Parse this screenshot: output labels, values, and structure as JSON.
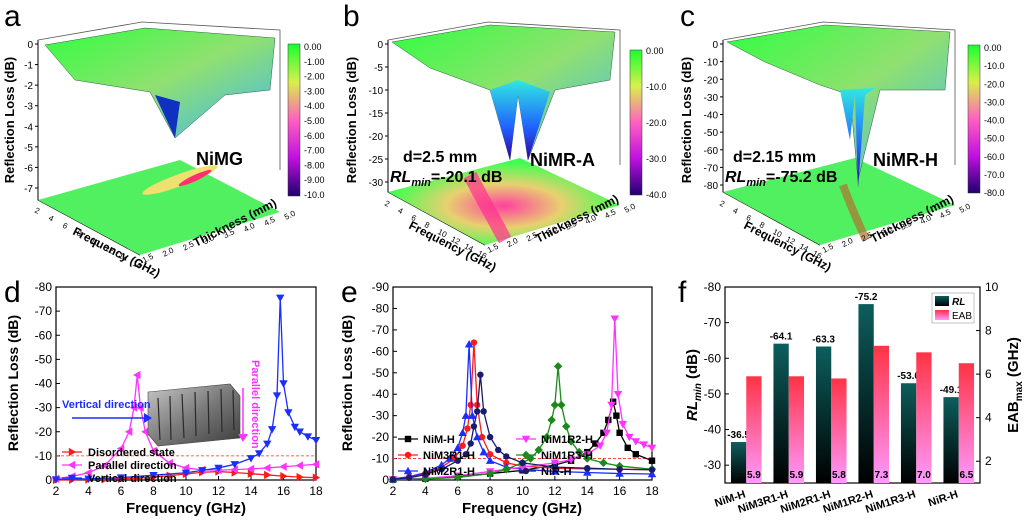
{
  "panels": {
    "a": {
      "letter": "a",
      "zlabel": "Reflection Loss (dB)",
      "xlabel": "Frequency (GHz)",
      "ylabel": "Thickness (mm)",
      "name": "NiMG",
      "zticks": [
        "0",
        "-1",
        "-2",
        "-3",
        "-4",
        "-5",
        "-6",
        "-7"
      ],
      "cbar": [
        "0.00",
        "-1.00",
        "-2.00",
        "-3.00",
        "-4.00",
        "-5.00",
        "-6.00",
        "-7.00",
        "-8.00",
        "-9.00",
        "-10.0"
      ],
      "fticks": [
        "2",
        "4",
        "6",
        "8",
        "10",
        "12",
        "14",
        "16"
      ],
      "tticks": [
        "1.5",
        "2.0",
        "2.5",
        "3.0",
        "3.5",
        "4.0",
        "4.5",
        "5.0"
      ]
    },
    "b": {
      "letter": "b",
      "zlabel": "Reflection Loss (dB)",
      "xlabel": "Frequency (GHz)",
      "ylabel": "Thickness (mm)",
      "name": "NiMR-A",
      "ann1": "d=2.5 mm",
      "ann2_rl": "RL",
      "ann2_sub": "min",
      "ann2_val": "=-20.1 dB",
      "zticks": [
        "0",
        "-5",
        "-10",
        "-15",
        "-20",
        "-25",
        "-30"
      ],
      "cbar": [
        "0.00",
        "-10.0",
        "-20.0",
        "-30.0",
        "-40.0"
      ],
      "fticks": [
        "2",
        "4",
        "6",
        "8",
        "10",
        "12",
        "14",
        "16"
      ],
      "tticks": [
        "1.5",
        "2.0",
        "2.5",
        "3.0",
        "3.5",
        "4.0",
        "4.5",
        "5.0"
      ]
    },
    "c": {
      "letter": "c",
      "zlabel": "Reflection Loss (dB)",
      "xlabel": "Frequency (GHz)",
      "ylabel": "Thickness (mm)",
      "name": "NiMR-H",
      "ann1": "d=2.15 mm",
      "ann2_rl": "RL",
      "ann2_sub": "min",
      "ann2_val": "=-75.2 dB",
      "zticks": [
        "0",
        "-10",
        "-20",
        "-30",
        "-40",
        "-50",
        "-60",
        "-70",
        "-80"
      ],
      "cbar": [
        "0.00",
        "-10.0",
        "-20.0",
        "-30.0",
        "-40.0",
        "-50.0",
        "-60.0",
        "-70.0",
        "-80.0"
      ],
      "fticks": [
        "2",
        "4",
        "6",
        "8",
        "10",
        "12",
        "14",
        "16"
      ],
      "tticks": [
        "1.5",
        "2.0",
        "2.5",
        "3.0",
        "3.5",
        "4.0",
        "4.5",
        "5.0"
      ]
    },
    "d": {
      "letter": "d",
      "ylabel": "Reflection Loss (dB)",
      "xlabel": "Frequency (GHz)",
      "inset_left": "Vertical direction",
      "inset_right": "Parallel direction"
    },
    "e": {
      "letter": "e",
      "ylabel": "Reflection Loss (dB)",
      "xlabel": "Frequency (GHz)"
    },
    "f": {
      "letter": "f",
      "ylabel_left": "RL",
      "ylabel_left_sub": "min",
      "ylabel_left_unit": " (dB)",
      "ylabel_right": "EAB",
      "ylabel_right_sub": "max",
      "ylabel_right_unit": " (GHz)",
      "legend": [
        "RL",
        "EAB"
      ]
    }
  },
  "colors": {
    "black": "#000000",
    "red": "#ff1a1a",
    "blue": "#1a2eff",
    "magenta": "#ff33ff",
    "green": "#1b8a1b",
    "navy": "#1a1a6e",
    "refline": "#ff2a2a"
  },
  "chart_data": [
    {
      "panel": "d",
      "type": "line",
      "xlabel": "Frequency (GHz)",
      "ylabel": "Reflection Loss (dB)",
      "xlim": [
        2,
        18
      ],
      "ylim": [
        -80,
        0
      ],
      "xticks": [
        2,
        4,
        6,
        8,
        10,
        12,
        14,
        16,
        18
      ],
      "yticks": [
        0,
        -10,
        -20,
        -30,
        -40,
        -50,
        -60,
        -70,
        -80
      ],
      "reference_line": -10,
      "legend_position": "bottom-left",
      "series": [
        {
          "name": "Disordered state",
          "color": "#ff1a1a",
          "marker": "triangle-right",
          "x": [
            2,
            3,
            4,
            5,
            6,
            7,
            8,
            9,
            10,
            11,
            12,
            13,
            14,
            15,
            16,
            17,
            18
          ],
          "y": [
            0,
            -0.1,
            -0.2,
            -0.3,
            -0.5,
            -0.8,
            -1.2,
            -1.8,
            -2.5,
            -3.2,
            -3.5,
            -3.1,
            -2.6,
            -2.1,
            -1.6,
            -1.2,
            -1
          ]
        },
        {
          "name": "Parallel direction",
          "color": "#ff33ff",
          "marker": "triangle-left",
          "x": [
            2,
            3,
            4,
            5,
            6,
            6.5,
            6.8,
            7,
            7.2,
            7.5,
            8,
            9,
            10,
            11,
            12,
            13,
            14,
            15,
            16,
            17,
            18
          ],
          "y": [
            -0.5,
            -1.5,
            -3,
            -6,
            -13,
            -20,
            -30,
            -43.5,
            -30,
            -20,
            -12,
            -7,
            -5,
            -4.2,
            -4.1,
            -4.3,
            -4.6,
            -5,
            -5.5,
            -6,
            -6.5
          ]
        },
        {
          "name": "Vertical direction",
          "color": "#1a2eff",
          "marker": "triangle-down",
          "x": [
            2,
            4,
            6,
            8,
            10,
            11,
            12,
            13,
            14,
            14.5,
            15,
            15.3,
            15.6,
            15.8,
            16,
            16.3,
            16.7,
            17,
            17.5,
            18
          ],
          "y": [
            -0.2,
            -0.5,
            -1,
            -2,
            -3,
            -4,
            -5,
            -6.5,
            -9,
            -11,
            -15,
            -21,
            -35,
            -75.5,
            -40,
            -28,
            -22,
            -20,
            -18,
            -16.5
          ]
        }
      ]
    },
    {
      "panel": "e",
      "type": "line",
      "xlabel": "Frequency (GHz)",
      "ylabel": "Reflection Loss (dB)",
      "xlim": [
        2,
        18
      ],
      "ylim": [
        -90,
        0
      ],
      "xticks": [
        2,
        4,
        6,
        8,
        10,
        12,
        14,
        16,
        18
      ],
      "yticks": [
        0,
        -10,
        -20,
        -30,
        -40,
        -50,
        -60,
        -70,
        -80,
        -90
      ],
      "reference_line": -10,
      "legend_position": "bottom-left",
      "series": [
        {
          "name": "NiM-H",
          "color": "#000000",
          "marker": "square",
          "x": [
            2,
            4,
            6,
            8,
            10,
            12,
            13,
            14,
            14.5,
            15,
            15.3,
            15.6,
            15.8,
            16,
            16.5,
            17,
            18
          ],
          "y": [
            -0.2,
            -0.6,
            -1.5,
            -3,
            -4.5,
            -7,
            -9,
            -13,
            -17,
            -22,
            -28,
            -36.5,
            -30,
            -22,
            -15,
            -12,
            -9
          ]
        },
        {
          "name": "NiM3R1-H",
          "color": "#ff1a1a",
          "marker": "circle",
          "x": [
            2,
            3,
            4,
            5,
            5.8,
            6.3,
            6.6,
            6.8,
            7,
            7.2,
            7.5,
            8,
            9,
            10,
            12,
            14,
            16,
            18
          ],
          "y": [
            -0.5,
            -1.5,
            -3,
            -6,
            -10,
            -16,
            -24,
            -35,
            -64.1,
            -35,
            -20,
            -12,
            -8,
            -6.5,
            -5.5,
            -5.2,
            -5,
            -4.8
          ]
        },
        {
          "name": "NiM2R1-H",
          "color": "#1a2eff",
          "marker": "triangle-up",
          "x": [
            2,
            3,
            4,
            5,
            5.5,
            6,
            6.3,
            6.5,
            6.7,
            6.9,
            7.2,
            7.6,
            8,
            9,
            10,
            12,
            14,
            16,
            18
          ],
          "y": [
            -0.5,
            -1.5,
            -3.5,
            -7,
            -10,
            -15,
            -22,
            -30,
            -63.3,
            -30,
            -20,
            -13,
            -9,
            -6,
            -5,
            -4,
            -3.5,
            -3,
            -2.8
          ]
        },
        {
          "name": "NiM1R2-H",
          "color": "#ff33ff",
          "marker": "triangle-down",
          "x": [
            2,
            4,
            6,
            8,
            10,
            12,
            13,
            14,
            14.8,
            15.2,
            15.5,
            15.7,
            15.9,
            16.2,
            16.6,
            17,
            17.5,
            18
          ],
          "y": [
            -0.3,
            -0.8,
            -2,
            -4,
            -6,
            -8,
            -9.5,
            -12,
            -16,
            -22,
            -35,
            -75.2,
            -40,
            -26,
            -20,
            -18,
            -16.5,
            -15
          ]
        },
        {
          "name": "NiM1R3-H",
          "color": "#1b8a1b",
          "marker": "diamond",
          "x": [
            2,
            4,
            6,
            8,
            9,
            10,
            10.5,
            11,
            11.5,
            11.8,
            12,
            12.2,
            12.4,
            12.7,
            13,
            13.5,
            14,
            15,
            16,
            18
          ],
          "y": [
            -0.2,
            -0.5,
            -1.2,
            -3,
            -5,
            -8,
            -10,
            -14,
            -20,
            -28,
            -35,
            -53,
            -35,
            -25,
            -18,
            -13,
            -10,
            -8,
            -6.5,
            -5
          ]
        },
        {
          "name": "NiR-H",
          "color": "#1a1a6e",
          "marker": "hexagon",
          "x": [
            2,
            3,
            4,
            5,
            6,
            6.5,
            6.8,
            7,
            7.2,
            7.4,
            7.6,
            8,
            8.5,
            9,
            10,
            12,
            14,
            16,
            18
          ],
          "y": [
            -0.3,
            -1,
            -2.5,
            -5,
            -9,
            -12,
            -17,
            -25,
            -32,
            -49.1,
            -32,
            -20,
            -14,
            -11,
            -8,
            -6,
            -5.5,
            -5,
            -4.8
          ]
        }
      ]
    },
    {
      "panel": "f",
      "type": "bar",
      "categories": [
        "NiM-H",
        "NiM3R1-H",
        "NiM2R1-H",
        "NiM1R2-H",
        "NiM1R3-H",
        "NiR-H"
      ],
      "ylim_left": [
        -25,
        -80
      ],
      "yticks_left": [
        -30,
        -40,
        -50,
        -60,
        -70,
        -80
      ],
      "ylim_right": [
        1,
        10
      ],
      "yticks_right": [
        2,
        4,
        6,
        8,
        10
      ],
      "legend_position": "top-right",
      "series": [
        {
          "name": "RL",
          "axis": "left",
          "values": [
            -36.5,
            -64.1,
            -63.3,
            -75.2,
            -53.0,
            -49.1
          ],
          "labels": [
            "-36.5",
            "-64.1",
            "-63.3",
            "-75.2",
            "-53.0",
            "-49.1"
          ],
          "color_top": "#0d5e5e",
          "color_bottom": "#000000"
        },
        {
          "name": "EAB",
          "axis": "right",
          "values": [
            5.9,
            5.9,
            5.8,
            7.3,
            7.0,
            6.5
          ],
          "labels": [
            "5.9",
            "5.9",
            "5.8",
            "7.3",
            "7.0",
            "6.5"
          ],
          "color_top": "#ff3344",
          "color_bottom": "#ff99ff"
        }
      ]
    }
  ]
}
